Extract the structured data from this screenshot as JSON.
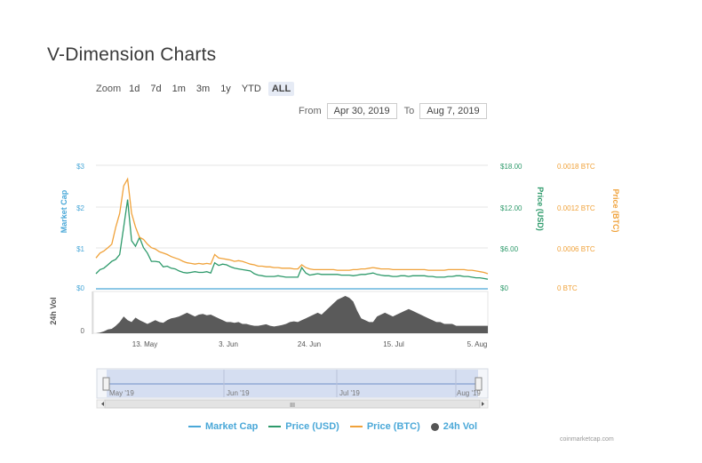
{
  "title": "V-Dimension Charts",
  "zoom": {
    "label": "Zoom",
    "buttons": [
      "1d",
      "7d",
      "1m",
      "3m",
      "1y",
      "YTD",
      "ALL"
    ],
    "active": "ALL"
  },
  "range": {
    "from_label": "From",
    "from_value": "Apr 30, 2019",
    "to_label": "To",
    "to_value": "Aug 7, 2019"
  },
  "colors": {
    "market_cap": "#4aa8d8",
    "price_usd": "#2e9a6b",
    "price_btc": "#f0a23a",
    "volume": "#555555"
  },
  "chart_data": {
    "type": "line",
    "x_labels": [
      "13. May",
      "3. Jun",
      "24. Jun",
      "15. Jul",
      "5. Aug"
    ],
    "axes": {
      "market_cap": {
        "title": "Market Cap",
        "ticks": [
          "$0",
          "$1",
          "$2",
          "$3"
        ]
      },
      "price_usd": {
        "title": "Price (USD)",
        "ticks": [
          "$0",
          "$6.00",
          "$12.00",
          "$18.00"
        ]
      },
      "price_btc": {
        "title": "Price (BTC)",
        "ticks": [
          "0 BTC",
          "0.0006 BTC",
          "0.0012 BTC",
          "0.0018 BTC"
        ]
      },
      "volume": {
        "title": "24h Vol",
        "ticks": [
          "0"
        ]
      }
    },
    "series": [
      {
        "name": "Market Cap",
        "values": [
          0,
          0,
          0,
          0,
          0,
          0,
          0,
          0,
          0,
          0,
          0,
          0,
          0,
          0,
          0,
          0,
          0,
          0,
          0,
          0,
          0,
          0,
          0,
          0,
          0,
          0,
          0,
          0,
          0,
          0,
          0,
          0,
          0,
          0,
          0,
          0,
          0,
          0,
          0,
          0,
          0,
          0,
          0,
          0,
          0,
          0,
          0,
          0,
          0,
          0,
          0,
          0,
          0,
          0,
          0,
          0,
          0,
          0,
          0,
          0,
          0,
          0,
          0,
          0,
          0,
          0,
          0,
          0,
          0,
          0,
          0,
          0,
          0,
          0,
          0,
          0,
          0,
          0,
          0,
          0,
          0,
          0,
          0,
          0,
          0,
          0,
          0,
          0,
          0,
          0,
          0,
          0,
          0,
          0,
          0,
          0,
          0,
          0,
          0,
          0
        ]
      },
      {
        "name": "Price (USD)",
        "values": [
          2.2,
          2.8,
          3.0,
          3.5,
          4.0,
          4.3,
          5.0,
          9.0,
          13.0,
          7.0,
          6.2,
          7.5,
          6.0,
          5.2,
          4.0,
          4.0,
          3.9,
          3.2,
          3.3,
          3.0,
          2.9,
          2.6,
          2.4,
          2.3,
          2.4,
          2.5,
          2.4,
          2.4,
          2.5,
          2.3,
          3.8,
          3.4,
          3.6,
          3.5,
          3.2,
          3.0,
          2.9,
          2.8,
          2.7,
          2.6,
          2.2,
          2.0,
          1.9,
          1.8,
          1.8,
          1.8,
          1.9,
          1.8,
          1.7,
          1.7,
          1.7,
          1.7,
          3.1,
          2.3,
          2.0,
          2.1,
          2.2,
          2.1,
          2.1,
          2.1,
          2.1,
          2.1,
          2.0,
          2.0,
          2.0,
          1.9,
          2.0,
          2.1,
          2.1,
          2.2,
          2.3,
          2.1,
          2.0,
          1.9,
          1.9,
          1.8,
          1.8,
          1.9,
          1.9,
          1.8,
          1.9,
          1.9,
          1.9,
          1.9,
          1.8,
          1.8,
          1.7,
          1.7,
          1.7,
          1.8,
          1.8,
          1.9,
          1.9,
          1.8,
          1.8,
          1.7,
          1.6,
          1.6,
          1.5,
          1.4
        ]
      },
      {
        "name": "Price (BTC)",
        "values": [
          0.00045,
          0.00052,
          0.00055,
          0.0006,
          0.00065,
          0.0009,
          0.0011,
          0.0015,
          0.0016,
          0.0011,
          0.0009,
          0.00075,
          0.00072,
          0.00065,
          0.0006,
          0.00058,
          0.00054,
          0.00052,
          0.0005,
          0.00047,
          0.00045,
          0.00043,
          0.0004,
          0.00038,
          0.00037,
          0.00036,
          0.00037,
          0.00036,
          0.00037,
          0.00036,
          0.0005,
          0.00045,
          0.00044,
          0.00043,
          0.00042,
          0.0004,
          0.00041,
          0.0004,
          0.00038,
          0.00036,
          0.00035,
          0.00033,
          0.00033,
          0.00032,
          0.00032,
          0.00031,
          0.00031,
          0.0003,
          0.0003,
          0.0003,
          0.00029,
          0.00029,
          0.00035,
          0.00031,
          0.00029,
          0.00028,
          0.00028,
          0.00028,
          0.00028,
          0.00028,
          0.00028,
          0.00027,
          0.00027,
          0.00027,
          0.00027,
          0.00028,
          0.00028,
          0.00029,
          0.00029,
          0.0003,
          0.00031,
          0.0003,
          0.00029,
          0.00029,
          0.00029,
          0.00028,
          0.00028,
          0.00028,
          0.00028,
          0.00028,
          0.00028,
          0.00028,
          0.00028,
          0.00028,
          0.00027,
          0.00027,
          0.00027,
          0.00027,
          0.00027,
          0.00028,
          0.00028,
          0.00028,
          0.00028,
          0.00028,
          0.00027,
          0.00027,
          0.00026,
          0.00025,
          0.00024,
          0.00022
        ]
      },
      {
        "name": "24h Vol",
        "values": [
          0.0,
          0.02,
          0.05,
          0.1,
          0.12,
          0.2,
          0.3,
          0.45,
          0.35,
          0.3,
          0.42,
          0.35,
          0.3,
          0.25,
          0.3,
          0.35,
          0.3,
          0.28,
          0.35,
          0.4,
          0.42,
          0.45,
          0.5,
          0.55,
          0.5,
          0.45,
          0.5,
          0.52,
          0.48,
          0.5,
          0.45,
          0.4,
          0.35,
          0.3,
          0.3,
          0.28,
          0.3,
          0.25,
          0.25,
          0.22,
          0.2,
          0.2,
          0.22,
          0.24,
          0.2,
          0.18,
          0.2,
          0.22,
          0.25,
          0.3,
          0.32,
          0.3,
          0.35,
          0.4,
          0.45,
          0.5,
          0.55,
          0.5,
          0.6,
          0.7,
          0.8,
          0.9,
          0.95,
          1.0,
          0.95,
          0.85,
          0.6,
          0.4,
          0.35,
          0.3,
          0.3,
          0.45,
          0.5,
          0.55,
          0.5,
          0.45,
          0.5,
          0.55,
          0.6,
          0.65,
          0.6,
          0.55,
          0.5,
          0.45,
          0.4,
          0.35,
          0.3,
          0.3,
          0.25,
          0.25,
          0.25,
          0.2,
          0.2,
          0.2,
          0.2,
          0.2,
          0.2,
          0.2,
          0.2,
          0.2
        ]
      }
    ]
  },
  "navigator": {
    "labels": [
      "May '19",
      "Jun '19",
      "Jul '19",
      "Aug '19"
    ],
    "scroll_grip": "III"
  },
  "credit": "coinmarketcap.com"
}
